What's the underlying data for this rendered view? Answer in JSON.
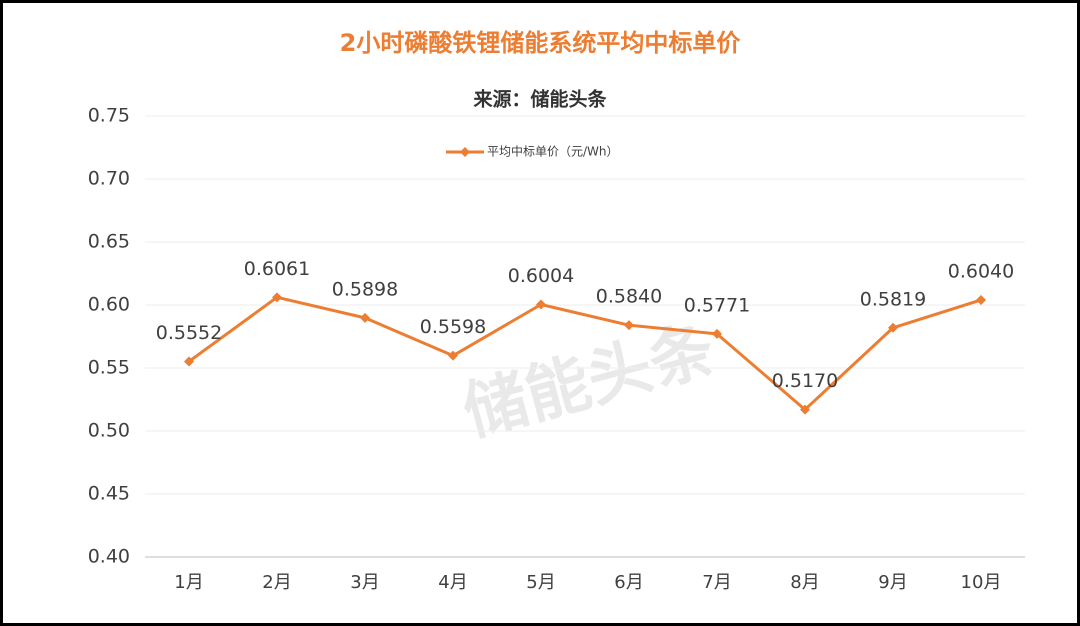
{
  "chart_data": {
    "type": "line",
    "title": "2小时磷酸铁锂储能系统平均中标单价",
    "subtitle": "来源：储能头条",
    "watermark": "储能头条",
    "categories": [
      "1月",
      "2月",
      "3月",
      "4月",
      "5月",
      "6月",
      "7月",
      "8月",
      "9月",
      "10月"
    ],
    "series": [
      {
        "name": "平均中标单价（元/Wh）",
        "color": "#ed7d31",
        "values": [
          0.5552,
          0.6061,
          0.5898,
          0.5598,
          0.6004,
          0.584,
          0.5771,
          0.517,
          0.5819,
          0.604
        ],
        "value_labels": [
          "0.5552",
          "0.6061",
          "0.5898",
          "0.5598",
          "0.6004",
          "0.5840",
          "0.5771",
          "0.5170",
          "0.5819",
          "0.6040"
        ]
      }
    ],
    "ylim": [
      0.4,
      0.75
    ],
    "yticks": [
      {
        "value": 0.4,
        "label": "0.40"
      },
      0.45,
      {
        "value": 0.5,
        "label": "0.50"
      },
      0.55,
      {
        "value": 0.6,
        "label": "0.60"
      },
      0.65,
      {
        "value": 0.7,
        "label": "0.70"
      },
      0.75
    ],
    "grid": true,
    "legend": "top"
  }
}
